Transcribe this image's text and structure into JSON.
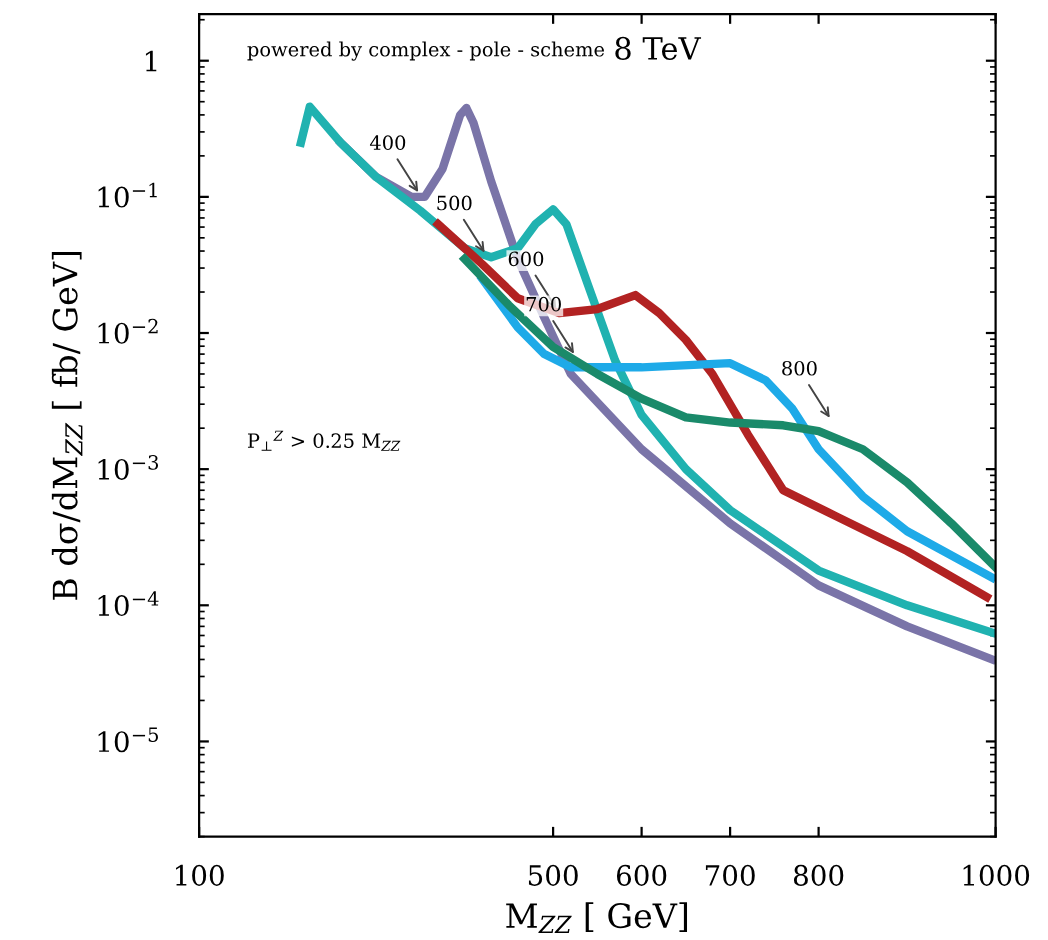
{
  "chart_data": {
    "type": "line",
    "title": null,
    "xlabel": "M$_{ZZ}$ [ GeV]",
    "ylabel": "B dσ/dM$_{ZZ}$ [ fb/ GeV]",
    "log": "y",
    "grid": false,
    "legend": false,
    "marker": "none",
    "line_style": "solid",
    "xlim": [
      100,
      1000
    ],
    "xticks": [
      100,
      500,
      600,
      700,
      800,
      1000
    ],
    "ylim": [
      2e-06,
      2.2
    ],
    "yticks": [
      {
        "value": 1e-05,
        "label": "10$^{−5}$"
      },
      {
        "value": 0.0001,
        "label": "10$^{−4}$"
      },
      {
        "value": 0.001,
        "label": "10$^{−3}$"
      },
      {
        "value": 0.01,
        "label": "10$^{−2}$"
      },
      {
        "value": 0.1,
        "label": "10$^{−1}$"
      },
      1
    ],
    "series": [
      {
        "color": "#7a74a8",
        "x": [
          260,
          300,
          340,
          355,
          375,
          395,
          402,
          410,
          430,
          460,
          490,
          520,
          600,
          700,
          800,
          900,
          996
        ],
        "values": [
          0.25,
          0.14,
          0.1,
          0.1,
          0.16,
          0.4,
          0.45,
          0.35,
          0.13,
          0.035,
          0.013,
          0.005,
          0.0014,
          0.0004,
          0.00014,
          7e-05,
          4e-05
        ]
      },
      {
        "color": "#20b2b0",
        "x": [
          215,
          225,
          260,
          300,
          350,
          400,
          430,
          460,
          480,
          500,
          515,
          540,
          570,
          600,
          650,
          700,
          800,
          900,
          996
        ],
        "values": [
          0.25,
          0.46,
          0.25,
          0.14,
          0.079,
          0.042,
          0.036,
          0.042,
          0.063,
          0.081,
          0.063,
          0.022,
          0.0063,
          0.0025,
          0.001,
          0.0005,
          0.00018,
          0.0001,
          6.3e-05
        ]
      },
      {
        "color": "#b22222",
        "x": [
          370,
          420,
          460,
          507,
          550,
          593,
          620,
          650,
          680,
          720,
          760,
          820,
          900,
          990
        ],
        "values": [
          0.063,
          0.032,
          0.018,
          0.014,
          0.015,
          0.019,
          0.014,
          0.0089,
          0.005,
          0.0018,
          0.0007,
          0.00045,
          0.00025,
          0.000115
        ]
      },
      {
        "color": "#1eaae8",
        "x": [
          420,
          460,
          490,
          520,
          600,
          700,
          740,
          770,
          800,
          850,
          900,
          996
        ],
        "values": [
          0.025,
          0.011,
          0.007,
          0.0056,
          0.0056,
          0.006,
          0.0045,
          0.0028,
          0.0014,
          0.00063,
          0.00035,
          0.00016
        ]
      },
      {
        "color": "#1a8a6a",
        "x": [
          400,
          450,
          500,
          550,
          600,
          650,
          700,
          760,
          800,
          850,
          900,
          950,
          1000
        ],
        "values": [
          0.035,
          0.016,
          0.0079,
          0.005,
          0.0033,
          0.0024,
          0.0022,
          0.0021,
          0.0019,
          0.0014,
          0.0008,
          0.0004,
          0.00019
        ]
      }
    ],
    "annotations": [
      "powered by complex - pole - scheme",
      "8 TeV",
      "P$_{⊥}$$^{Z}$ > 0.25 M$_{ZZ}$",
      {
        "text": "400",
        "x": 351,
        "y": 0.1
      },
      {
        "text": "500",
        "x": 426,
        "y": 0.036
      },
      {
        "text": "600",
        "x": 507,
        "y": 0.014
      },
      {
        "text": "700",
        "x": 527,
        "y": 0.0065
      },
      {
        "text": "800",
        "x": 816,
        "y": 0.0022
      }
    ]
  }
}
